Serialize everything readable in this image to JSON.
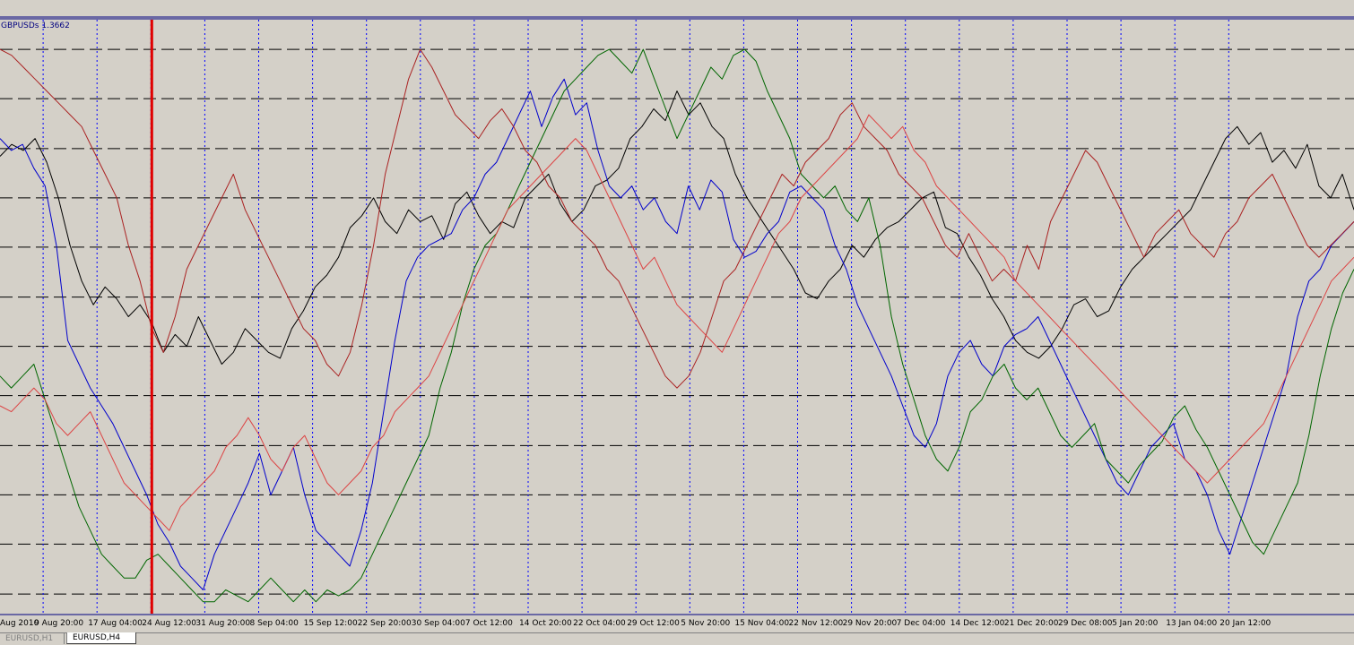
{
  "indicator_label": "GBPUSDs 1.3662",
  "tabs": [
    {
      "label": "EURUSD,H1",
      "active": false
    },
    {
      "label": "EURUSD,H4",
      "active": true
    }
  ],
  "colors": {
    "background": "#d4d0c8",
    "vertical_grid": "#0000ff",
    "horizontal_grid": "#000000",
    "separator": "#000080",
    "cursor_line": "#e00000"
  },
  "chart_data": {
    "type": "line",
    "x_tick_labels": [
      "Aug 2010",
      "9 Aug 20:00",
      "17 Aug 04:00",
      "24 Aug 12:00",
      "31 Aug 20:00",
      "8 Sep 04:00",
      "15 Sep 12:00",
      "22 Sep 20:00",
      "30 Sep 04:00",
      "7 Oct 12:00",
      "14 Oct 20:00",
      "22 Oct 04:00",
      "29 Oct 12:00",
      "5 Nov 20:00",
      "15 Nov 04:00",
      "22 Nov 12:00",
      "29 Nov 20:00",
      "7 Dec 04:00",
      "14 Dec 12:00",
      "21 Dec 20:00",
      "29 Dec 08:00",
      "5 Jan 20:00",
      "13 Jan 04:00",
      "20 Jan 12:00"
    ],
    "cursor_at": "24 Aug 12:00",
    "ylim": [
      0,
      100
    ],
    "horizontal_levels": [
      95,
      86.7,
      78.3,
      70,
      61.7,
      53.3,
      45,
      36.7,
      28.3,
      20,
      11.7,
      3.3
    ],
    "series": [
      {
        "color": "#000000",
        "values": [
          77,
          79,
          78,
          80,
          76,
          70,
          62,
          56,
          52,
          55,
          53,
          50,
          52,
          49,
          44,
          47,
          45,
          50,
          46,
          42,
          44,
          48,
          46,
          44,
          43,
          48,
          51,
          55,
          57,
          60,
          65,
          67,
          70,
          66,
          64,
          68,
          66,
          67,
          63,
          69,
          71,
          67,
          64,
          66,
          65,
          70,
          72,
          74,
          69,
          66,
          68,
          72,
          73,
          75,
          80,
          82,
          85,
          83,
          88,
          84,
          86,
          82,
          80,
          74,
          70,
          67,
          64,
          61,
          58,
          54,
          53,
          56,
          58,
          62,
          60,
          63,
          65,
          66,
          68,
          70,
          71,
          65,
          64,
          60,
          57,
          53,
          50,
          46,
          44,
          43,
          45,
          48,
          52,
          53,
          50,
          51,
          55,
          58,
          60,
          62,
          64,
          66,
          68,
          72,
          76,
          80,
          82,
          79,
          81,
          76,
          78,
          75,
          79,
          72,
          70,
          74,
          68
        ]
      },
      {
        "color": "#0000cc",
        "values": [
          80,
          78,
          79,
          75,
          72,
          62,
          46,
          42,
          38,
          35,
          32,
          28,
          24,
          20,
          15,
          12,
          8,
          6,
          4,
          10,
          14,
          18,
          22,
          27,
          20,
          24,
          28,
          20,
          14,
          12,
          10,
          8,
          14,
          22,
          34,
          46,
          56,
          60,
          62,
          63,
          64,
          68,
          70,
          74,
          76,
          80,
          84,
          88,
          82,
          87,
          90,
          84,
          86,
          78,
          72,
          70,
          72,
          68,
          70,
          66,
          64,
          72,
          68,
          73,
          71,
          63,
          60,
          61,
          64,
          66,
          71,
          72,
          70,
          68,
          62,
          58,
          52,
          48,
          44,
          40,
          35,
          30,
          28,
          32,
          40,
          44,
          46,
          42,
          40,
          45,
          47,
          48,
          50,
          46,
          42,
          38,
          34,
          30,
          26,
          22,
          20,
          24,
          28,
          30,
          32,
          26,
          24,
          20,
          14,
          10,
          16,
          22,
          28,
          34,
          40,
          50,
          56,
          58,
          62,
          64,
          66
        ]
      },
      {
        "color": "#006600",
        "values": [
          40,
          38,
          40,
          42,
          36,
          30,
          24,
          18,
          14,
          10,
          8,
          6,
          6,
          9,
          10,
          8,
          6,
          4,
          2,
          2,
          4,
          3,
          2,
          4,
          6,
          4,
          2,
          4,
          2,
          4,
          3,
          4,
          6,
          10,
          14,
          18,
          22,
          26,
          30,
          38,
          44,
          52,
          58,
          62,
          64,
          68,
          72,
          76,
          80,
          84,
          88,
          90,
          92,
          94,
          95,
          93,
          91,
          95,
          90,
          85,
          80,
          84,
          88,
          92,
          90,
          94,
          95,
          93,
          88,
          84,
          80,
          74,
          72,
          70,
          72,
          68,
          66,
          70,
          62,
          50,
          42,
          36,
          30,
          26,
          24,
          28,
          34,
          36,
          40,
          42,
          38,
          36,
          38,
          34,
          30,
          28,
          30,
          32,
          26,
          24,
          22,
          25,
          27,
          29,
          33,
          35,
          31,
          28,
          24,
          20,
          16,
          12,
          10,
          14,
          18,
          22,
          30,
          40,
          48,
          54,
          58
        ]
      },
      {
        "color": "#aa2222",
        "values": [
          95,
          94,
          92,
          90,
          88,
          86,
          84,
          82,
          78,
          74,
          70,
          62,
          56,
          48,
          44,
          50,
          58,
          62,
          66,
          70,
          74,
          68,
          64,
          60,
          56,
          52,
          48,
          46,
          42,
          40,
          44,
          52,
          62,
          74,
          82,
          90,
          95,
          92,
          88,
          84,
          82,
          80,
          83,
          85,
          82,
          78,
          76,
          72,
          70,
          66,
          64,
          62,
          58,
          56,
          52,
          48,
          44,
          40,
          38,
          40,
          44,
          50,
          56,
          58,
          62,
          66,
          70,
          74,
          72,
          76,
          78,
          80,
          84,
          86,
          82,
          80,
          78,
          74,
          72,
          70,
          66,
          62,
          60,
          64,
          60,
          56,
          58,
          56,
          62,
          58,
          66,
          70,
          74,
          78,
          76,
          72,
          68,
          64,
          60,
          64,
          66,
          68,
          64,
          62,
          60,
          64,
          66,
          70,
          72,
          74,
          70,
          66,
          62,
          60,
          62,
          64,
          66
        ]
      },
      {
        "color": "#dd4444",
        "values": [
          35,
          34,
          36,
          38,
          36,
          32,
          30,
          32,
          34,
          30,
          26,
          22,
          20,
          18,
          16,
          14,
          18,
          20,
          22,
          24,
          28,
          30,
          33,
          30,
          26,
          24,
          28,
          30,
          26,
          22,
          20,
          22,
          24,
          28,
          30,
          34,
          36,
          38,
          40,
          44,
          48,
          52,
          56,
          60,
          64,
          68,
          70,
          72,
          74,
          76,
          78,
          80,
          78,
          74,
          70,
          66,
          62,
          58,
          60,
          56,
          52,
          50,
          48,
          46,
          44,
          48,
          52,
          56,
          60,
          64,
          66,
          70,
          72,
          74,
          76,
          78,
          80,
          84,
          82,
          80,
          82,
          78,
          76,
          72,
          70,
          68,
          66,
          64,
          62,
          60,
          56,
          54,
          52,
          50,
          48,
          46,
          44,
          42,
          40,
          38,
          36,
          34,
          32,
          30,
          28,
          26,
          24,
          22,
          24,
          26,
          28,
          30,
          32,
          36,
          40,
          44,
          48,
          52,
          56,
          58,
          60
        ]
      }
    ]
  }
}
